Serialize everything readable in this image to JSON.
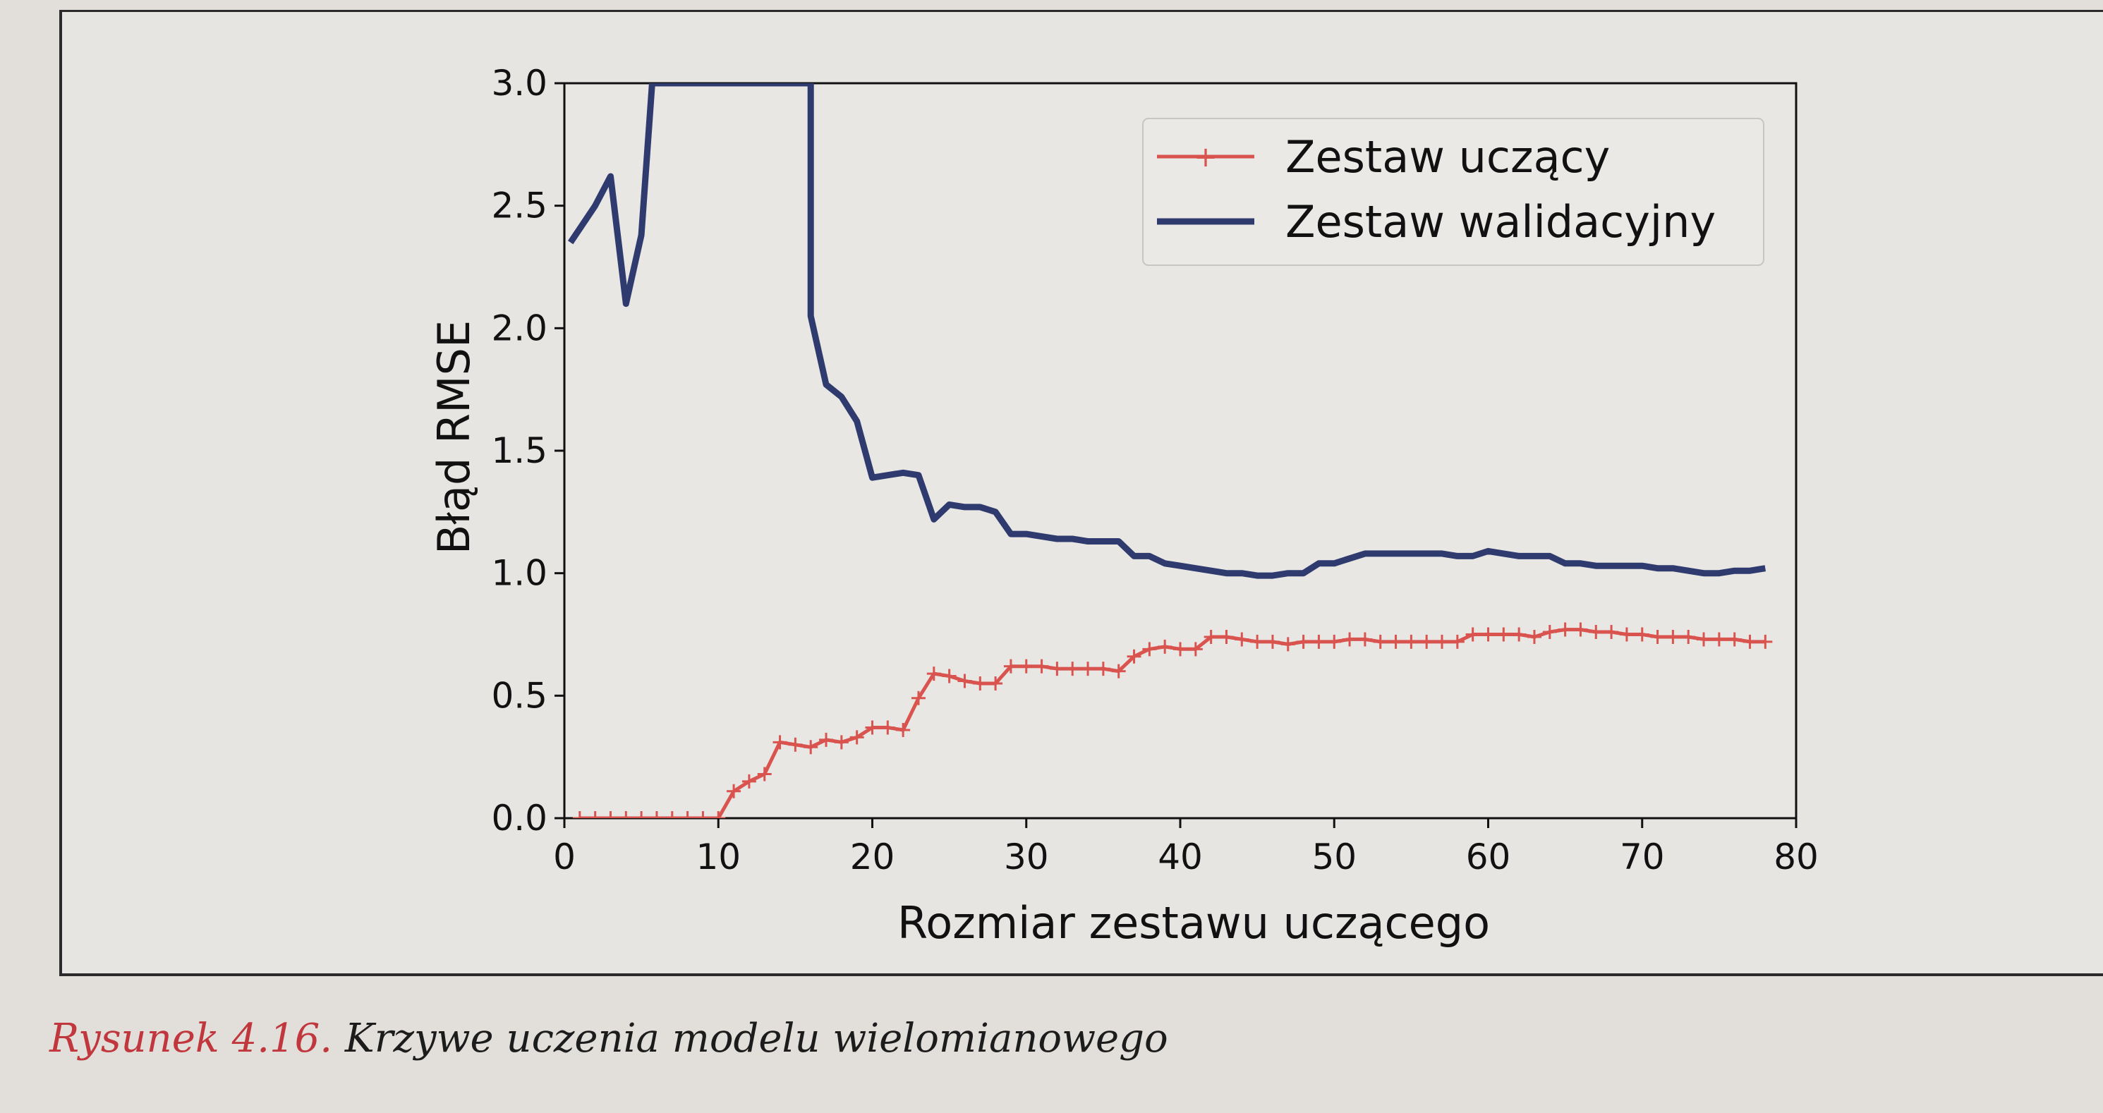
{
  "chart_data": {
    "type": "line",
    "xlabel": "Rozmiar zestawu uczącego",
    "ylabel": "Błąd RMSE",
    "xlim": [
      0,
      80
    ],
    "ylim": [
      0,
      3.0
    ],
    "xticks": [
      "0",
      "10",
      "20",
      "30",
      "40",
      "50",
      "60",
      "70",
      "80"
    ],
    "yticks": [
      "0.0",
      "0.5",
      "1.0",
      "1.5",
      "2.0",
      "2.5",
      "3.0"
    ],
    "grid": false,
    "legend_position": "top-right",
    "series": [
      {
        "name": "Zestaw uczący",
        "color": "#d9534f",
        "marker": "+",
        "x": [
          1,
          2,
          3,
          4,
          5,
          6,
          7,
          8,
          9,
          10,
          11,
          12,
          13,
          14,
          15,
          16,
          17,
          18,
          19,
          20,
          21,
          22,
          23,
          24,
          25,
          26,
          27,
          28,
          29,
          30,
          31,
          32,
          33,
          34,
          35,
          36,
          37,
          38,
          39,
          40,
          41,
          42,
          43,
          44,
          45,
          46,
          47,
          48,
          49,
          50,
          51,
          52,
          53,
          54,
          55,
          56,
          57,
          58,
          59,
          60,
          61,
          62,
          63,
          64,
          65,
          66,
          67,
          68,
          69,
          70,
          71,
          72,
          73,
          74,
          75,
          76,
          77,
          78
        ],
        "y": [
          0,
          0,
          0,
          0,
          0,
          0,
          0,
          0,
          0,
          0,
          0.11,
          0.15,
          0.18,
          0.31,
          0.3,
          0.29,
          0.32,
          0.31,
          0.33,
          0.37,
          0.37,
          0.36,
          0.49,
          0.59,
          0.58,
          0.56,
          0.55,
          0.55,
          0.62,
          0.62,
          0.62,
          0.61,
          0.61,
          0.61,
          0.61,
          0.6,
          0.66,
          0.69,
          0.7,
          0.69,
          0.69,
          0.74,
          0.74,
          0.73,
          0.72,
          0.72,
          0.71,
          0.72,
          0.72,
          0.72,
          0.73,
          0.73,
          0.72,
          0.72,
          0.72,
          0.72,
          0.72,
          0.72,
          0.75,
          0.75,
          0.75,
          0.75,
          0.74,
          0.76,
          0.77,
          0.77,
          0.76,
          0.76,
          0.75,
          0.75,
          0.74,
          0.74,
          0.74,
          0.73,
          0.73,
          0.73,
          0.72,
          0.72
        ]
      },
      {
        "name": "Zestaw walidacyjny",
        "color": "#2f3b6e",
        "marker": "",
        "x": [
          0.4,
          2,
          3,
          4,
          5,
          5.7,
          16,
          16,
          17,
          18,
          19,
          20,
          21,
          22,
          23,
          24,
          25,
          26,
          27,
          28,
          29,
          30,
          31,
          32,
          33,
          34,
          35,
          36,
          37,
          38,
          39,
          40,
          41,
          42,
          43,
          44,
          45,
          46,
          47,
          48,
          49,
          50,
          51,
          52,
          53,
          54,
          55,
          56,
          57,
          58,
          59,
          60,
          61,
          62,
          63,
          64,
          65,
          66,
          67,
          68,
          69,
          70,
          71,
          72,
          73,
          74,
          75,
          76,
          77,
          78
        ],
        "y": [
          2.35,
          2.5,
          2.62,
          2.1,
          2.38,
          3.0,
          3.0,
          2.05,
          1.77,
          1.72,
          1.62,
          1.39,
          1.4,
          1.41,
          1.4,
          1.22,
          1.28,
          1.27,
          1.27,
          1.25,
          1.16,
          1.16,
          1.15,
          1.14,
          1.14,
          1.13,
          1.13,
          1.13,
          1.07,
          1.07,
          1.04,
          1.03,
          1.02,
          1.01,
          1.0,
          1.0,
          0.99,
          0.99,
          1.0,
          1.0,
          1.04,
          1.04,
          1.06,
          1.08,
          1.08,
          1.08,
          1.08,
          1.08,
          1.08,
          1.07,
          1.07,
          1.09,
          1.08,
          1.07,
          1.07,
          1.07,
          1.04,
          1.04,
          1.03,
          1.03,
          1.03,
          1.03,
          1.02,
          1.02,
          1.01,
          1.0,
          1.0,
          1.01,
          1.01,
          1.02
        ]
      }
    ]
  },
  "caption": {
    "label": "Rysunek 4.16.",
    "text": "Krzywe uczenia modelu wielomianowego"
  }
}
